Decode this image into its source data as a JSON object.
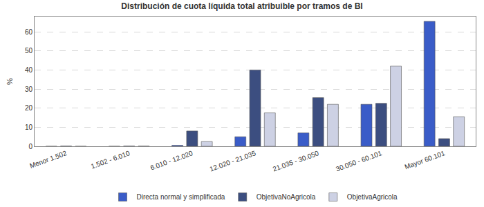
{
  "chart_data": {
    "type": "bar",
    "title": "Distribución de cuota líquida total atribuible por tramos de BI",
    "y_label": "%",
    "categories": [
      "Menor 1.502",
      "1.502 - 6.010",
      "6.010 - 12.020",
      "12.020 - 21.035",
      "21.035 - 30.050",
      "30.050 - 60.101",
      "Mayor 60.101"
    ],
    "series": [
      {
        "name": "Directa normal y simplificada",
        "color": "#3a5cc8",
        "values": [
          0,
          0,
          0.5,
          5,
          7,
          22,
          65.5
        ]
      },
      {
        "name": "ObjetivaNoAgricola",
        "color": "#3c4e80",
        "values": [
          0.1,
          0.1,
          8,
          40,
          25.5,
          22.5,
          4
        ]
      },
      {
        "name": "ObjetivaAgricola",
        "color": "#cdd1e4",
        "values": [
          0,
          0.1,
          2.5,
          17.5,
          22,
          42,
          15.5
        ]
      }
    ],
    "ylim": [
      0,
      68
    ],
    "yticks": [
      0,
      10,
      20,
      30,
      40,
      50,
      60
    ],
    "grid": true,
    "legend": "bottom"
  }
}
